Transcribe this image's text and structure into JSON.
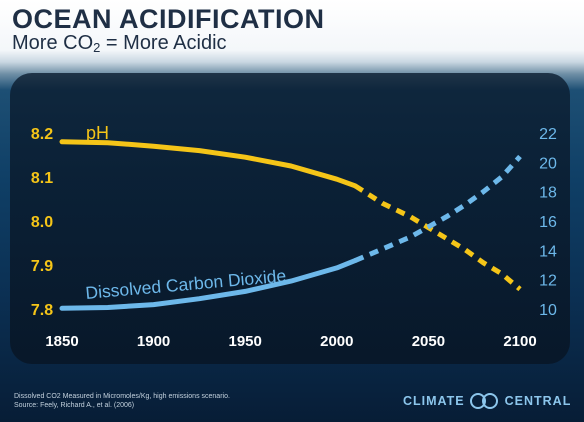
{
  "title": "OCEAN ACIDIFICATION",
  "subtitle_before": "More CO",
  "subtitle_sub": "2",
  "subtitle_after": " = More Acidic",
  "footnote_line1": "Dissolved CO2 Measured in Micromoles/Kg, high emissions scenario.",
  "footnote_line2": "Source: Feely, Richard A., et al. (2006)",
  "logo_left": "CLIMATE",
  "logo_right": "CENTRAL",
  "chart_data": {
    "type": "line",
    "x_ticks": [
      1850,
      1900,
      1950,
      2000,
      2050,
      2100
    ],
    "xlim": [
      1850,
      2100
    ],
    "y_left_ticks": [
      7.8,
      7.9,
      8.0,
      8.1,
      8.2
    ],
    "y_left_lim": [
      7.8,
      8.2
    ],
    "y_right_ticks": [
      10,
      12,
      14,
      16,
      18,
      20,
      22
    ],
    "y_right_lim": [
      10,
      22
    ],
    "grid": false,
    "series": [
      {
        "name": "pH",
        "axis": "left",
        "color": "#f5c518",
        "solid": {
          "x": [
            1850,
            1875,
            1900,
            1925,
            1950,
            1975,
            2000,
            2010
          ],
          "y": [
            8.18,
            8.178,
            8.17,
            8.16,
            8.145,
            8.125,
            8.095,
            8.08
          ]
        },
        "dashed": {
          "x": [
            2010,
            2025,
            2040,
            2050,
            2060,
            2070,
            2080,
            2090,
            2100
          ],
          "y": [
            8.08,
            8.04,
            8.01,
            7.985,
            7.96,
            7.935,
            7.905,
            7.88,
            7.845
          ]
        }
      },
      {
        "name": "Dissolved Carbon Dioxide",
        "axis": "right",
        "color": "#6db8ea",
        "solid": {
          "x": [
            1850,
            1875,
            1900,
            1925,
            1950,
            1975,
            2000,
            2010
          ],
          "y": [
            10.05,
            10.1,
            10.3,
            10.7,
            11.2,
            11.9,
            12.8,
            13.3
          ]
        },
        "dashed": {
          "x": [
            2010,
            2025,
            2040,
            2050,
            2060,
            2070,
            2080,
            2090,
            2100
          ],
          "y": [
            13.3,
            14.1,
            14.9,
            15.6,
            16.3,
            17.1,
            18.0,
            19.0,
            20.4
          ]
        }
      }
    ]
  }
}
